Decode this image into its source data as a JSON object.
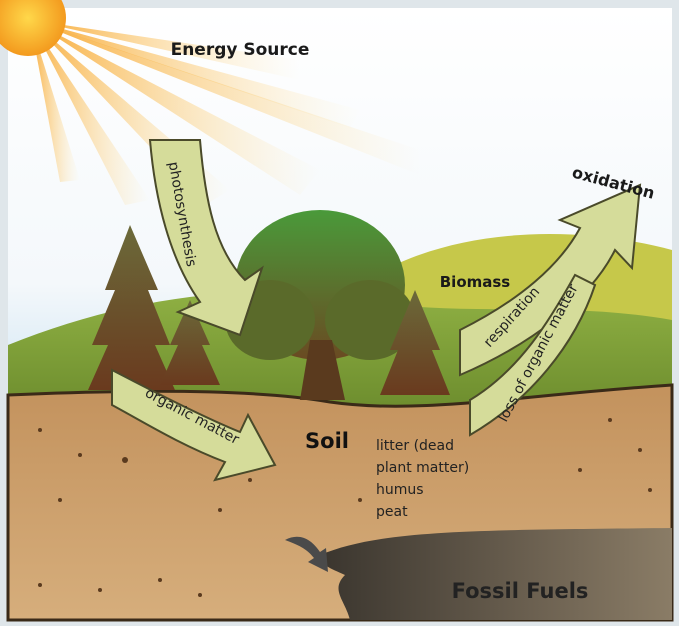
{
  "nodes": [
    {
      "label": "Energy Source"
    },
    {
      "label": "oxidation"
    },
    {
      "label": "Biomass"
    },
    {
      "label": "Soil"
    },
    {
      "label": "Fossil Fuels"
    }
  ],
  "arrows": [
    {
      "label": "photosynthesis"
    },
    {
      "label": "organic matter"
    },
    {
      "label": "respiration"
    },
    {
      "label": "loss of organic matter"
    }
  ],
  "soil_contents": [
    "litter (dead",
    "plant matter)",
    "humus",
    "peat"
  ]
}
